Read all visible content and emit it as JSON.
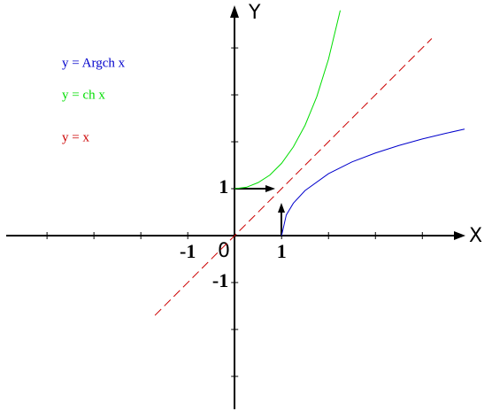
{
  "chart_data": {
    "type": "line",
    "x_label": "X",
    "y_label": "Y",
    "origin_label": "0",
    "xlim": [
      -4.87,
      4.9
    ],
    "ylim": [
      -3.7,
      4.87
    ],
    "xticks": [
      -1,
      1
    ],
    "yticks": [
      -1,
      1
    ],
    "x_minor_ticks": [
      -4,
      -3,
      -2,
      2,
      3,
      4
    ],
    "y_minor_ticks": [
      -3,
      -2,
      2,
      3,
      4
    ],
    "series": [
      {
        "name": "y = Argch x",
        "color": "#0000cc",
        "dashed": false,
        "x": [
          1,
          1.1,
          1.25,
          1.5,
          2,
          2.5,
          3,
          3.5,
          4,
          4.5,
          4.9
        ],
        "values": [
          0,
          0.44,
          0.69,
          0.96,
          1.32,
          1.57,
          1.76,
          1.92,
          2.06,
          2.18,
          2.27
        ]
      },
      {
        "name": "y = ch x",
        "color": "#00dd00",
        "dashed": false,
        "x": [
          0,
          0.25,
          0.5,
          0.75,
          1,
          1.25,
          1.5,
          1.75,
          2,
          2.25
        ],
        "values": [
          1,
          1.03,
          1.13,
          1.29,
          1.54,
          1.89,
          2.35,
          2.96,
          3.76,
          4.8
        ]
      },
      {
        "name": "y = x",
        "color": "#cc0000",
        "dashed": true,
        "x": [
          -1.7,
          4.2
        ],
        "values": [
          -1.7,
          4.2
        ]
      }
    ]
  }
}
